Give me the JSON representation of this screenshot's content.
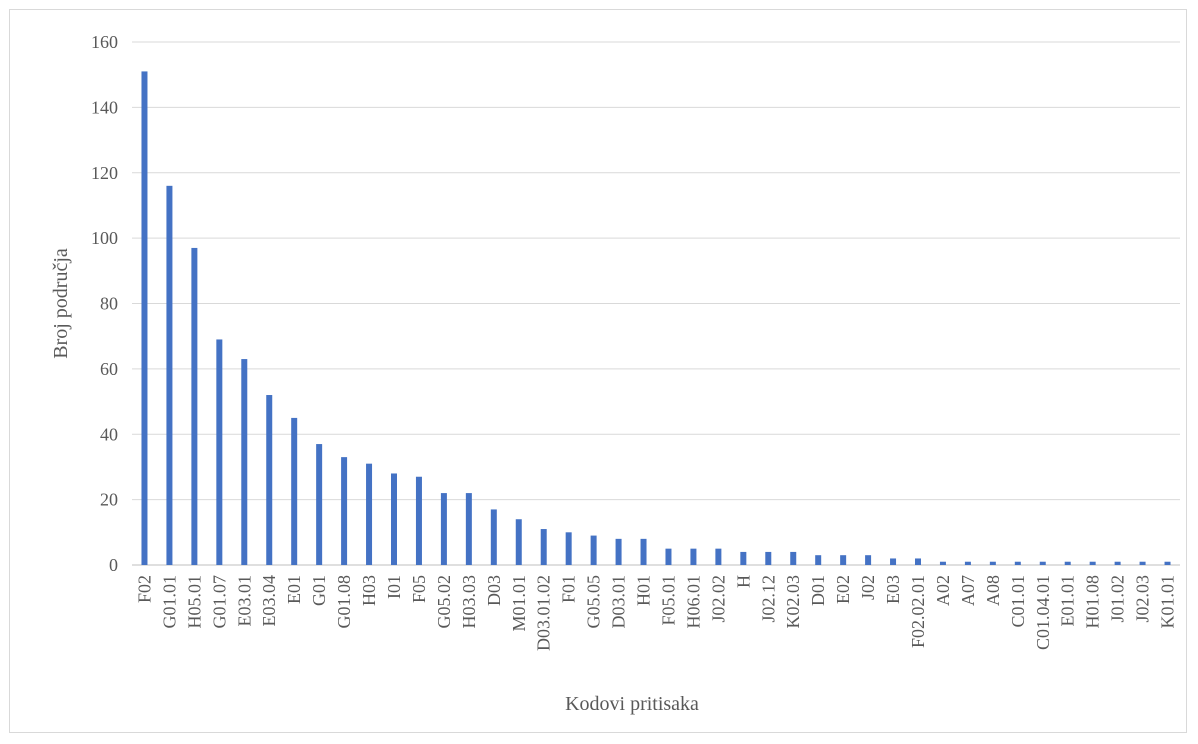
{
  "chart_data": {
    "type": "bar",
    "title": "",
    "xlabel": "Kodovi pritisaka",
    "ylabel": "Broj područja",
    "ylim": [
      0,
      160
    ],
    "yticks": [
      0,
      20,
      40,
      60,
      80,
      100,
      120,
      140,
      160
    ],
    "grid": true,
    "legend": "none",
    "bar_color": "#4472c4",
    "categories": [
      "F02",
      "G01.01",
      "H05.01",
      "G01.07",
      "E03.01",
      "E03.04",
      "E01",
      "G01",
      "G01.08",
      "H03",
      "I01",
      "F05",
      "G05.02",
      "H03.03",
      "D03",
      "M01.01",
      "D03.01.02",
      "F01",
      "G05.05",
      "D03.01",
      "H01",
      "F05.01",
      "H06.01",
      "J02.02",
      "H",
      "J02.12",
      "K02.03",
      "D01",
      "E02",
      "J02",
      "E03",
      "F02.02.01",
      "A02",
      "A07",
      "A08",
      "C01.01",
      "C01.04.01",
      "E01.01",
      "H01.08",
      "J01.02",
      "J02.03",
      "K01.01"
    ],
    "values": [
      151,
      116,
      97,
      69,
      63,
      52,
      45,
      37,
      33,
      31,
      28,
      27,
      22,
      22,
      17,
      14,
      11,
      10,
      9,
      8,
      8,
      5,
      5,
      5,
      4,
      4,
      4,
      3,
      3,
      3,
      2,
      2,
      1,
      1,
      1,
      1,
      1,
      1,
      1,
      1,
      1,
      1
    ]
  }
}
